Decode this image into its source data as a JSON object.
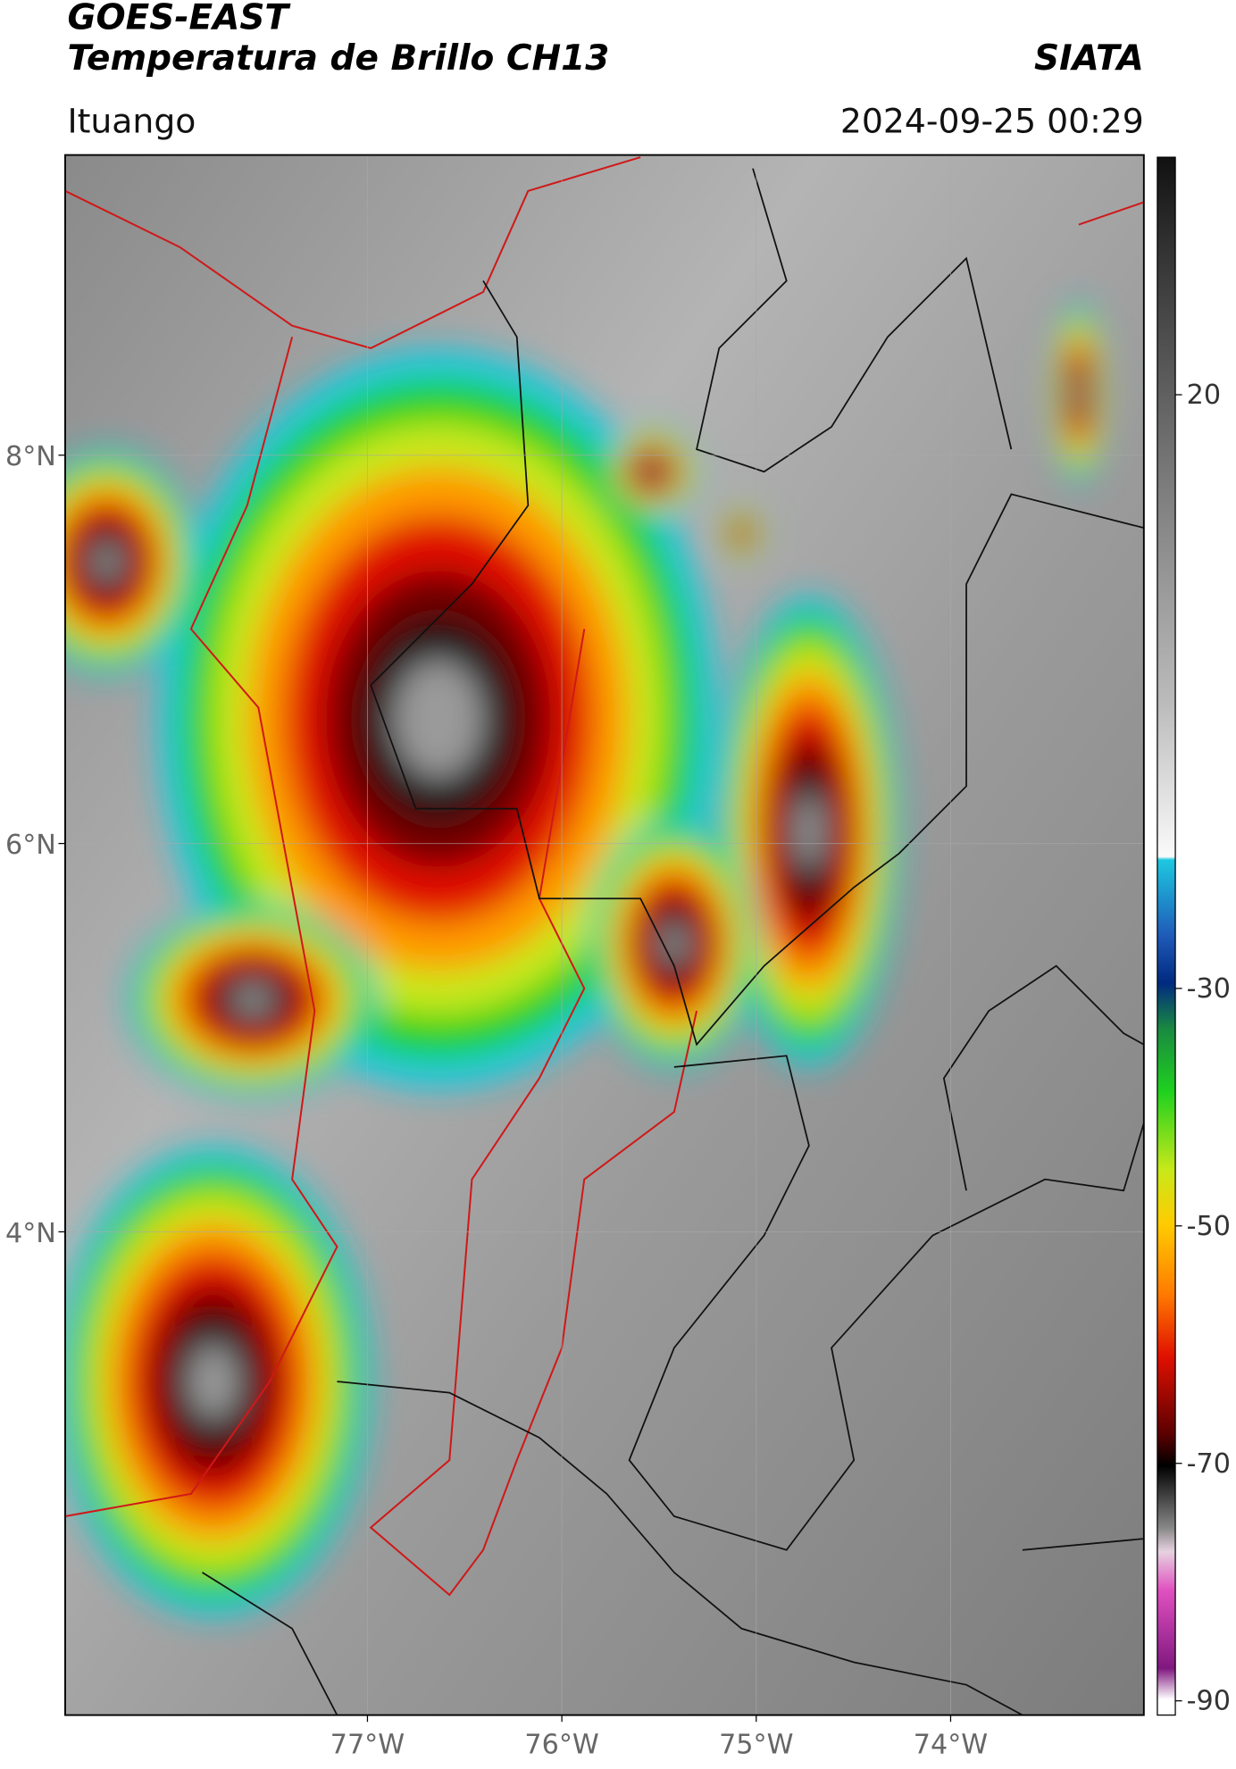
{
  "header": {
    "satellite": "GOES-EAST",
    "product": "Temperatura de Brillo CH13",
    "agency": "SIATA",
    "region": "Ituango",
    "timestamp": "2024-09-25 00:29"
  },
  "map": {
    "xlim": [
      -78.555,
      -73.006
    ],
    "ylim": [
      1.511,
      9.546
    ],
    "xticks": [
      {
        "value": -77,
        "label": "77°W"
      },
      {
        "value": -76,
        "label": "76°W"
      },
      {
        "value": -75,
        "label": "75°W"
      },
      {
        "value": -74,
        "label": "74°W"
      }
    ],
    "yticks": [
      {
        "value": 8,
        "label": "8°N"
      },
      {
        "value": 6,
        "label": "6°N"
      },
      {
        "value": 4,
        "label": "4°N"
      }
    ],
    "grid": true
  },
  "colorbar": {
    "lim": [
      -91.2,
      40
    ],
    "ticks": [
      20,
      -30,
      -50,
      -70,
      -90
    ]
  }
}
